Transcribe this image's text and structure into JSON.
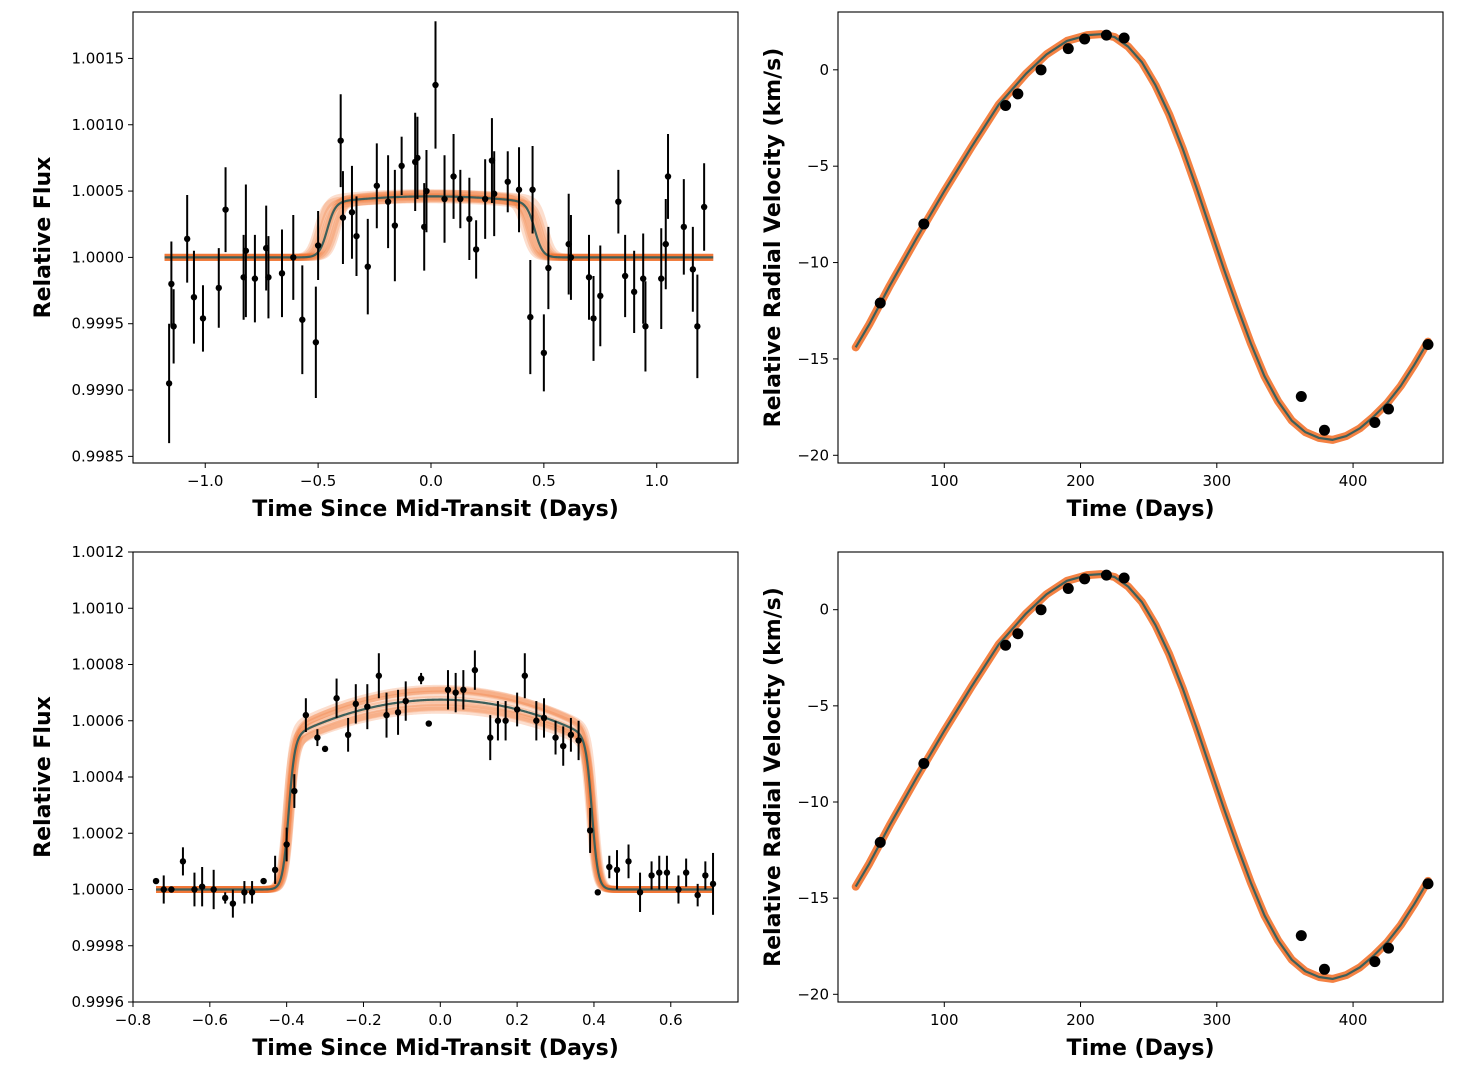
{
  "colors": {
    "model_line": "#3d5f5a",
    "posterior_band": "#f26b21",
    "data": "#000000",
    "axes": "#000000"
  },
  "chart_data": [
    {
      "type": "scatter",
      "panel": "top-left",
      "xlabel": "Time Since Mid-Transit (Days)",
      "ylabel": "Relative Flux",
      "xlim": [
        -1.32,
        1.36
      ],
      "ylim": [
        0.99845,
        1.00185
      ],
      "xticks": [
        -1.0,
        -0.5,
        0.0,
        0.5,
        1.0
      ],
      "xtick_labels": [
        "−1.0",
        "−0.5",
        "0.0",
        "0.5",
        "1.0"
      ],
      "yticks": [
        0.9985,
        0.999,
        0.9995,
        1.0,
        1.0005,
        1.001,
        1.0015
      ],
      "ytick_labels": [
        "0.9985",
        "0.9990",
        "0.9995",
        "1.0000",
        "1.0005",
        "1.0010",
        "1.0015"
      ],
      "model": {
        "type": "transit",
        "depth": 0.00046,
        "half_width": 0.46,
        "edge": 0.018,
        "curvature": 0.1,
        "x_range": [
          -1.18,
          1.25
        ],
        "band_width": 3e-05,
        "center_spread": 0.045
      },
      "series": [
        {
          "x": [
            -1.16,
            -1.15,
            -1.14,
            -1.08,
            -1.05,
            -1.01,
            -0.94,
            -0.91,
            -0.83,
            -0.82,
            -0.78,
            -0.73,
            -0.72,
            -0.66,
            -0.61,
            -0.57,
            -0.51,
            -0.5,
            -0.4,
            -0.39,
            -0.35,
            -0.33,
            -0.28,
            -0.24,
            -0.19,
            -0.16,
            -0.13,
            -0.07,
            -0.06,
            -0.03,
            -0.02,
            0.02,
            0.06,
            0.1,
            0.13,
            0.17,
            0.2,
            0.24,
            0.27,
            0.28,
            0.34,
            0.39,
            0.44,
            0.45,
            0.5,
            0.52,
            0.61,
            0.62,
            0.7,
            0.72,
            0.75,
            0.83,
            0.86,
            0.9,
            0.94,
            0.95,
            1.02,
            1.04,
            1.05,
            1.12,
            1.16,
            1.18,
            1.21
          ],
          "y": [
            0.99905,
            0.9998,
            0.99948,
            1.00014,
            0.9997,
            0.99954,
            0.99977,
            1.00036,
            0.99985,
            1.00005,
            0.99984,
            1.00007,
            0.99985,
            0.99988,
            1.0,
            0.99953,
            0.99936,
            1.00009,
            1.00088,
            1.0003,
            1.00034,
            1.00016,
            0.99993,
            1.00054,
            1.00042,
            1.00024,
            1.00069,
            1.00072,
            1.00075,
            1.00023,
            1.0005,
            1.0013,
            1.00044,
            1.00061,
            1.00044,
            1.00029,
            1.00006,
            1.00044,
            1.00073,
            1.00048,
            1.00057,
            1.00051,
            0.99955,
            1.00051,
            0.99928,
            0.99992,
            1.0001,
            1.0,
            0.99985,
            0.99954,
            0.99971,
            1.00042,
            0.99986,
            0.99974,
            0.99984,
            0.99948,
            0.99984,
            1.0001,
            1.00061,
            1.00023,
            0.99991,
            0.99948,
            1.00038
          ],
          "err": [
            0.00045,
            0.00032,
            0.00028,
            0.00033,
            0.00035,
            0.00025,
            0.0003,
            0.00032,
            0.00032,
            0.0005,
            0.00033,
            0.00032,
            0.00031,
            0.00033,
            0.00032,
            0.00041,
            0.00042,
            0.00026,
            0.00035,
            0.00035,
            0.00035,
            0.0003,
            0.00036,
            0.00032,
            0.00035,
            0.00042,
            0.00022,
            0.00037,
            0.00031,
            0.00033,
            0.00031,
            0.00048,
            0.00033,
            0.00032,
            0.00022,
            0.00031,
            0.00022,
            0.0003,
            0.00032,
            0.00032,
            0.00023,
            0.00032,
            0.00043,
            0.00033,
            0.00029,
            0.00031,
            0.00038,
            0.00032,
            0.00032,
            0.00032,
            0.00038,
            0.00024,
            0.00031,
            0.00031,
            0.00034,
            0.00034,
            0.00038,
            0.00034,
            0.00032,
            0.00036,
            0.00032,
            0.00039,
            0.00033
          ]
        }
      ]
    },
    {
      "type": "line",
      "panel": "top-right",
      "xlabel": "Time (Days)",
      "ylabel": "Relative Radial Velocity (km/s)",
      "xlim": [
        22,
        466
      ],
      "ylim": [
        -20.4,
        3.0
      ],
      "xticks": [
        100,
        200,
        300,
        400
      ],
      "xtick_labels": [
        "100",
        "200",
        "300",
        "400"
      ],
      "yticks": [
        -20,
        -15,
        -10,
        -5,
        0
      ],
      "ytick_labels": [
        "−20",
        "−15",
        "−10",
        "−5",
        "0"
      ],
      "model_x": [
        35,
        45,
        60,
        80,
        100,
        120,
        140,
        160,
        175,
        190,
        205,
        215,
        225,
        235,
        245,
        255,
        265,
        275,
        285,
        295,
        305,
        315,
        325,
        335,
        345,
        355,
        365,
        375,
        385,
        395,
        405,
        415,
        425,
        435,
        445,
        455
      ],
      "model_y": [
        -14.4,
        -13.2,
        -11.2,
        -8.7,
        -6.3,
        -4.0,
        -1.8,
        -0.2,
        0.8,
        1.5,
        1.8,
        1.85,
        1.7,
        1.2,
        0.4,
        -0.8,
        -2.3,
        -4.1,
        -6.1,
        -8.2,
        -10.3,
        -12.3,
        -14.2,
        -15.9,
        -17.2,
        -18.2,
        -18.8,
        -19.1,
        -19.2,
        -19.0,
        -18.6,
        -18.0,
        -17.3,
        -16.4,
        -15.3,
        -14.1
      ],
      "series": [
        {
          "x": [
            53,
            85,
            145,
            154,
            171,
            191,
            203,
            219,
            232,
            362,
            379,
            416,
            426,
            455
          ],
          "y": [
            -12.1,
            -8.0,
            -1.85,
            -1.25,
            0.0,
            1.1,
            1.6,
            1.8,
            1.65,
            -16.95,
            -18.7,
            -18.3,
            -17.6,
            -14.25
          ]
        }
      ]
    },
    {
      "type": "scatter",
      "panel": "bottom-left",
      "xlabel": "Time Since Mid-Transit (Days)",
      "ylabel": "Relative Flux",
      "xlim": [
        -0.8,
        0.775
      ],
      "ylim": [
        0.9996,
        1.0012
      ],
      "xticks": [
        -0.8,
        -0.6,
        -0.4,
        -0.2,
        0.0,
        0.2,
        0.4,
        0.6
      ],
      "xtick_labels": [
        "−0.8",
        "−0.6",
        "−0.4",
        "−0.2",
        "0.0",
        "0.2",
        "0.4",
        "0.6"
      ],
      "yticks": [
        0.9996,
        0.9998,
        1.0,
        1.0002,
        1.0004,
        1.0006,
        1.0008,
        1.001,
        1.0012
      ],
      "ytick_labels": [
        "0.9996",
        "0.9998",
        "1.0000",
        "1.0002",
        "1.0004",
        "1.0006",
        "1.0008",
        "1.0010",
        "1.0012"
      ],
      "model": {
        "type": "transit",
        "depth": 0.000675,
        "half_width": 0.395,
        "edge": 0.008,
        "curvature": 0.2,
        "x_range": [
          -0.74,
          0.71
        ],
        "band_width": 1.4e-05,
        "center_spread": 0.007
      },
      "series": [
        {
          "x": [
            -0.74,
            -0.72,
            -0.7,
            -0.67,
            -0.64,
            -0.62,
            -0.59,
            -0.56,
            -0.54,
            -0.51,
            -0.49,
            -0.46,
            -0.43,
            -0.4,
            -0.38,
            -0.35,
            -0.32,
            -0.3,
            -0.27,
            -0.24,
            -0.22,
            -0.19,
            -0.16,
            -0.14,
            -0.11,
            -0.09,
            -0.05,
            -0.03,
            0.02,
            0.04,
            0.06,
            0.09,
            0.13,
            0.15,
            0.17,
            0.2,
            0.22,
            0.25,
            0.27,
            0.3,
            0.32,
            0.34,
            0.36,
            0.39,
            0.41,
            0.44,
            0.46,
            0.49,
            0.52,
            0.55,
            0.57,
            0.59,
            0.62,
            0.64,
            0.67,
            0.69,
            0.71
          ],
          "y": [
            1.00003,
            1.0,
            1.0,
            1.0001,
            1.0,
            1.00001,
            1.0,
            0.99997,
            0.99995,
            0.99999,
            0.99999,
            1.00003,
            1.00007,
            1.00016,
            1.00035,
            1.00062,
            1.00054,
            1.0005,
            1.00068,
            1.00055,
            1.00066,
            1.00065,
            1.00076,
            1.00062,
            1.00063,
            1.00067,
            1.00075,
            1.00059,
            1.00071,
            1.0007,
            1.00071,
            1.00078,
            1.00054,
            1.0006,
            1.0006,
            1.00064,
            1.00076,
            1.0006,
            1.00061,
            1.00054,
            1.00051,
            1.00055,
            1.00053,
            1.00021,
            0.99999,
            1.00008,
            1.00007,
            1.0001,
            0.99999,
            1.00005,
            1.00006,
            1.00006,
            1.0,
            1.00006,
            0.99998,
            1.00005,
            1.00002
          ],
          "err": [
            0,
            5e-05,
            0,
            5e-05,
            6e-05,
            7e-05,
            7e-05,
            2e-05,
            5e-05,
            4e-05,
            4e-05,
            1e-05,
            5e-05,
            6e-05,
            6e-05,
            6e-05,
            3e-05,
            0,
            7e-05,
            6e-05,
            7e-05,
            8e-05,
            8e-05,
            8e-05,
            8e-05,
            7e-05,
            2e-05,
            0,
            7e-05,
            7e-05,
            7e-05,
            7e-05,
            8e-05,
            7e-05,
            7e-05,
            6e-05,
            8e-05,
            7e-05,
            7e-05,
            6e-05,
            7e-05,
            6e-05,
            7e-05,
            8e-05,
            1e-05,
            4e-05,
            7e-05,
            6e-05,
            7e-05,
            5e-05,
            6e-05,
            6e-05,
            5e-05,
            5e-05,
            4e-05,
            5e-05,
            0.00011
          ]
        }
      ]
    },
    {
      "type": "line",
      "panel": "bottom-right",
      "xlabel": "Time (Days)",
      "ylabel": "Relative Radial Velocity (km/s)",
      "xlim": [
        22,
        466
      ],
      "ylim": [
        -20.4,
        3.0
      ],
      "xticks": [
        100,
        200,
        300,
        400
      ],
      "xtick_labels": [
        "100",
        "200",
        "300",
        "400"
      ],
      "yticks": [
        -20,
        -15,
        -10,
        -5,
        0
      ],
      "ytick_labels": [
        "−20",
        "−15",
        "−10",
        "−5",
        "0"
      ],
      "model_x": [
        35,
        45,
        60,
        80,
        100,
        120,
        140,
        160,
        175,
        190,
        205,
        215,
        225,
        235,
        245,
        255,
        265,
        275,
        285,
        295,
        305,
        315,
        325,
        335,
        345,
        355,
        365,
        375,
        385,
        395,
        405,
        415,
        425,
        435,
        445,
        455
      ],
      "model_y": [
        -14.4,
        -13.2,
        -11.2,
        -8.7,
        -6.3,
        -4.0,
        -1.8,
        -0.2,
        0.8,
        1.5,
        1.8,
        1.85,
        1.7,
        1.2,
        0.4,
        -0.8,
        -2.3,
        -4.1,
        -6.1,
        -8.2,
        -10.3,
        -12.3,
        -14.2,
        -15.9,
        -17.2,
        -18.2,
        -18.8,
        -19.1,
        -19.2,
        -19.0,
        -18.6,
        -18.0,
        -17.3,
        -16.4,
        -15.3,
        -14.1
      ],
      "series": [
        {
          "x": [
            53,
            85,
            145,
            154,
            171,
            191,
            203,
            219,
            232,
            362,
            379,
            416,
            426,
            455
          ],
          "y": [
            -12.1,
            -8.0,
            -1.85,
            -1.25,
            0.0,
            1.1,
            1.6,
            1.8,
            1.65,
            -16.95,
            -18.7,
            -18.3,
            -17.6,
            -14.25
          ]
        }
      ]
    }
  ]
}
